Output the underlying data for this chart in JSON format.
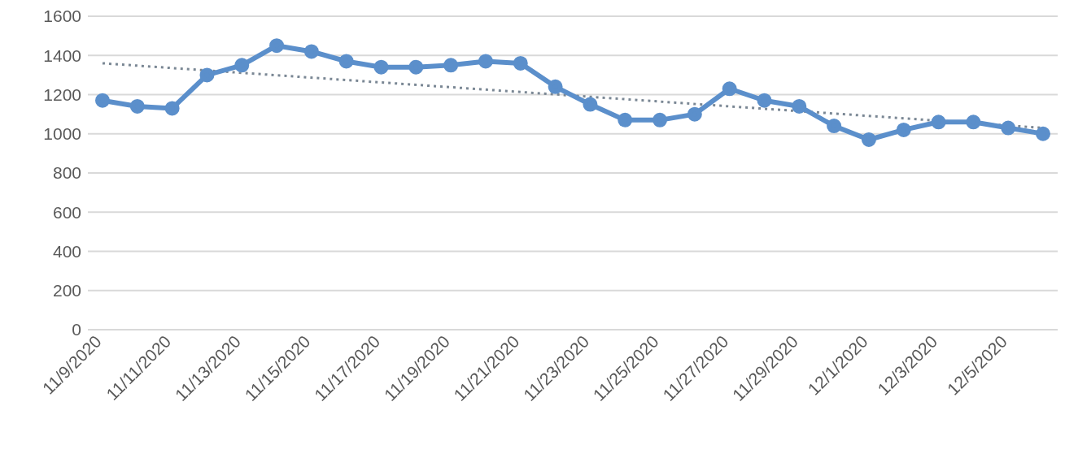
{
  "chart_data": {
    "type": "line",
    "categories": [
      "11/9/2020",
      null,
      "11/11/2020",
      null,
      "11/13/2020",
      null,
      "11/15/2020",
      null,
      "11/17/2020",
      null,
      "11/19/2020",
      null,
      "11/21/2020",
      null,
      "11/23/2020",
      null,
      "11/25/2020",
      null,
      "11/27/2020",
      null,
      "11/29/2020",
      null,
      "12/1/2020",
      null,
      "12/3/2020",
      null,
      "12/5/2020",
      null
    ],
    "series": [
      {
        "color": "#5b8fcb",
        "marker": "circle",
        "line_style": "solid",
        "values": [
          1170,
          1140,
          1130,
          1300,
          1350,
          1450,
          1420,
          1370,
          1340,
          1340,
          1350,
          1370,
          1360,
          1240,
          1150,
          1070,
          1070,
          1100,
          1230,
          1170,
          1140,
          1040,
          970,
          1020,
          1060,
          1060,
          1030,
          1000
        ]
      },
      {
        "type": "line",
        "color": "#7a8794",
        "marker": "none",
        "line_style": "dotted",
        "values": [
          1360,
          null,
          null,
          null,
          null,
          null,
          null,
          null,
          null,
          null,
          null,
          null,
          null,
          null,
          null,
          null,
          null,
          null,
          null,
          null,
          null,
          null,
          null,
          null,
          null,
          null,
          null,
          1030
        ]
      }
    ],
    "ylim": [
      0,
      1600
    ],
    "yticks": [
      0,
      200,
      400,
      600,
      800,
      1000,
      1200,
      1400,
      1600
    ],
    "grid": "y"
  }
}
